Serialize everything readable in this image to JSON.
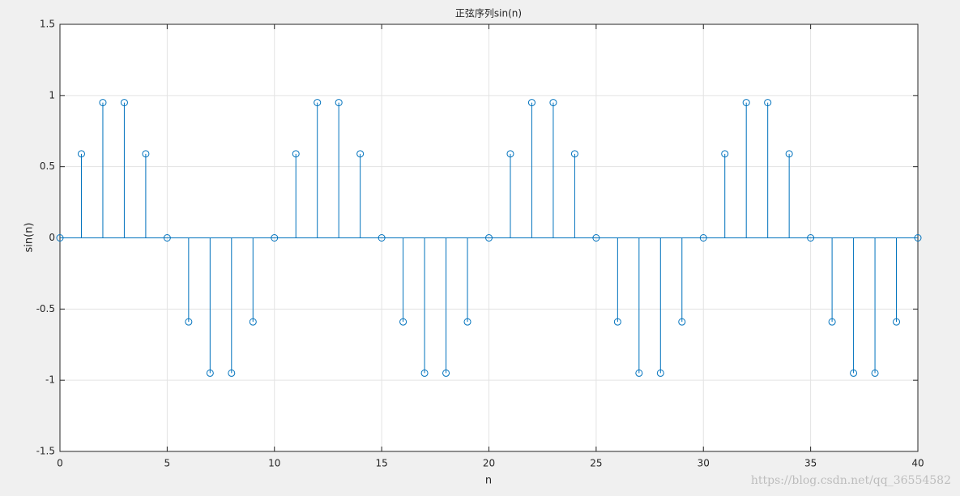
{
  "chart_data": {
    "type": "stem",
    "title": "正弦序列sin(n)",
    "xlabel": "n",
    "ylabel": "sin(n)",
    "x": [
      0,
      1,
      2,
      3,
      4,
      5,
      6,
      7,
      8,
      9,
      10,
      11,
      12,
      13,
      14,
      15,
      16,
      17,
      18,
      19,
      20,
      21,
      22,
      23,
      24,
      25,
      26,
      27,
      28,
      29,
      30,
      31,
      32,
      33,
      34,
      35,
      36,
      37,
      38,
      39,
      40
    ],
    "values": [
      0,
      0.59,
      0.95,
      0.95,
      0.59,
      0,
      -0.59,
      -0.95,
      -0.95,
      -0.59,
      0,
      0.59,
      0.95,
      0.95,
      0.59,
      0,
      -0.59,
      -0.95,
      -0.95,
      -0.59,
      0,
      0.59,
      0.95,
      0.95,
      0.59,
      0,
      -0.59,
      -0.95,
      -0.95,
      -0.59,
      0,
      0.59,
      0.95,
      0.95,
      0.59,
      0,
      -0.59,
      -0.95,
      -0.95,
      -0.59,
      0
    ],
    "color": "#0072bd",
    "xlim": [
      0,
      40
    ],
    "xticks": [
      0,
      5,
      10,
      15,
      20,
      25,
      30,
      35,
      40
    ],
    "ylim": [
      -1.5,
      1.5
    ],
    "yticks": [
      -1.5,
      -1,
      -0.5,
      0,
      0.5,
      1,
      1.5
    ],
    "grid": true,
    "watermark": "https://blog.csdn.net/qq_36554582"
  }
}
